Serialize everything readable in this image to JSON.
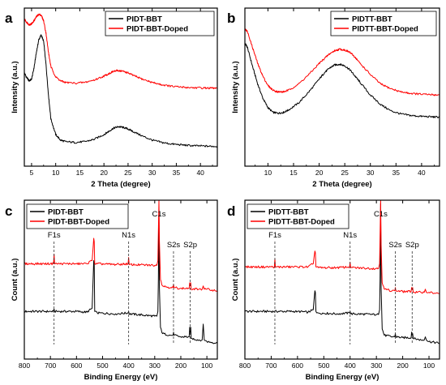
{
  "chart_data": [
    {
      "type": "line",
      "panel": "a",
      "xlabel": "2 Theta (degree)",
      "ylabel": "Intensity (a.u.)",
      "xlim": [
        3.5,
        43.5
      ],
      "ylim": [
        0,
        1
      ],
      "xticks": [
        5,
        10,
        15,
        20,
        25,
        30,
        35,
        40
      ],
      "legend": "top-right",
      "series": [
        {
          "name": "PIDT-BBT",
          "color": "#000000",
          "x": [
            3.5,
            4.0,
            4.5,
            5.0,
            5.5,
            6.0,
            6.5,
            7.0,
            7.5,
            8.0,
            8.5,
            9.0,
            10.0,
            11.0,
            12.0,
            14.0,
            16.0,
            18.0,
            20.0,
            21.0,
            22.0,
            23.0,
            24.0,
            25.0,
            26.0,
            28.0,
            30.0,
            32.0,
            34.0,
            36.0,
            38.0,
            40.0,
            42.0,
            43.5
          ],
          "y": [
            0.59,
            0.56,
            0.54,
            0.55,
            0.62,
            0.72,
            0.8,
            0.83,
            0.79,
            0.64,
            0.45,
            0.3,
            0.2,
            0.165,
            0.155,
            0.15,
            0.155,
            0.17,
            0.2,
            0.22,
            0.24,
            0.25,
            0.245,
            0.235,
            0.22,
            0.19,
            0.165,
            0.15,
            0.14,
            0.135,
            0.13,
            0.128,
            0.126,
            0.125
          ]
        },
        {
          "name": "PIDT-BBT-Doped",
          "color": "#ff0000",
          "x": [
            3.5,
            4.0,
            4.5,
            5.0,
            5.5,
            6.0,
            6.5,
            7.0,
            7.5,
            8.0,
            8.5,
            9.0,
            10.0,
            11.0,
            12.0,
            14.0,
            16.0,
            18.0,
            20.0,
            21.0,
            22.0,
            23.0,
            24.0,
            25.0,
            26.0,
            28.0,
            30.0,
            32.0,
            34.0,
            36.0,
            38.0,
            40.0,
            42.0,
            43.5
          ],
          "y": [
            0.93,
            0.91,
            0.895,
            0.9,
            0.92,
            0.945,
            0.96,
            0.955,
            0.92,
            0.84,
            0.72,
            0.63,
            0.565,
            0.54,
            0.53,
            0.525,
            0.53,
            0.545,
            0.57,
            0.585,
            0.6,
            0.605,
            0.6,
            0.59,
            0.575,
            0.55,
            0.53,
            0.515,
            0.505,
            0.5,
            0.497,
            0.495,
            0.494,
            0.493
          ]
        }
      ]
    },
    {
      "type": "line",
      "panel": "b",
      "xlabel": "2 Theta (degree)",
      "ylabel": "Intensity (a.u.)",
      "xlim": [
        5.5,
        43.5
      ],
      "ylim": [
        0,
        1
      ],
      "xticks": [
        10,
        15,
        20,
        25,
        30,
        35,
        40
      ],
      "legend": "top-right",
      "series": [
        {
          "name": "PIDTT-BBT",
          "color": "#000000",
          "x": [
            5.5,
            6.0,
            7.0,
            8.0,
            9.0,
            10.0,
            11.0,
            12.0,
            13.0,
            14.0,
            16.0,
            18.0,
            20.0,
            21.0,
            22.0,
            23.0,
            24.0,
            25.0,
            26.0,
            27.0,
            28.0,
            30.0,
            32.0,
            34.0,
            36.0,
            38.0,
            40.0,
            42.0,
            43.5
          ],
          "y": [
            0.78,
            0.75,
            0.63,
            0.52,
            0.43,
            0.37,
            0.34,
            0.335,
            0.34,
            0.355,
            0.4,
            0.47,
            0.55,
            0.59,
            0.62,
            0.64,
            0.645,
            0.635,
            0.61,
            0.57,
            0.53,
            0.45,
            0.39,
            0.35,
            0.33,
            0.32,
            0.315,
            0.312,
            0.31
          ]
        },
        {
          "name": "PIDTT-BBT-Doped",
          "color": "#ff0000",
          "x": [
            5.5,
            6.0,
            7.0,
            8.0,
            9.0,
            10.0,
            11.0,
            12.0,
            13.0,
            14.0,
            16.0,
            18.0,
            20.0,
            21.0,
            22.0,
            23.0,
            24.0,
            25.0,
            26.0,
            27.0,
            28.0,
            30.0,
            32.0,
            34.0,
            36.0,
            38.0,
            40.0,
            42.0,
            43.5
          ],
          "y": [
            0.87,
            0.85,
            0.75,
            0.65,
            0.57,
            0.51,
            0.48,
            0.47,
            0.47,
            0.48,
            0.52,
            0.58,
            0.65,
            0.68,
            0.71,
            0.73,
            0.74,
            0.735,
            0.72,
            0.69,
            0.65,
            0.58,
            0.52,
            0.49,
            0.47,
            0.46,
            0.455,
            0.452,
            0.45
          ]
        }
      ]
    },
    {
      "type": "line",
      "panel": "c",
      "xlabel": "Binding Energy (eV)",
      "ylabel": "Count (a.u.)",
      "xlim": [
        800,
        60
      ],
      "ylim": [
        0,
        1
      ],
      "xticks": [
        800,
        700,
        600,
        500,
        400,
        300,
        200,
        100
      ],
      "legend": "top-left",
      "annotations": [
        {
          "text": "F1s",
          "x": 686
        },
        {
          "text": "N1s",
          "x": 400
        },
        {
          "text": "C1s",
          "x": 284
        },
        {
          "text": "S2s",
          "x": 228
        },
        {
          "text": "S2p",
          "x": 164
        }
      ],
      "series": [
        {
          "name": "PIDT-BBT",
          "color": "#000000",
          "x": [
            800,
            700,
            688,
            686,
            684,
            600,
            560,
            540,
            534,
            532,
            530,
            520,
            450,
            402,
            400,
            398,
            300,
            292,
            288,
            286,
            284,
            282,
            278,
            270,
            240,
            230,
            228,
            226,
            200,
            168,
            166,
            164,
            162,
            160,
            130,
            118,
            114,
            110,
            100,
            80,
            60
          ],
          "y": [
            0.3,
            0.3,
            0.3,
            0.315,
            0.3,
            0.3,
            0.295,
            0.32,
            0.62,
            0.6,
            0.3,
            0.29,
            0.285,
            0.29,
            0.3,
            0.285,
            0.27,
            0.27,
            0.3,
            0.5,
            0.93,
            0.45,
            0.2,
            0.16,
            0.15,
            0.15,
            0.17,
            0.15,
            0.14,
            0.14,
            0.2,
            0.17,
            0.2,
            0.13,
            0.12,
            0.12,
            0.22,
            0.12,
            0.11,
            0.105,
            0.1
          ]
        },
        {
          "name": "PIDT-BBT-Doped",
          "color": "#ff0000",
          "x": [
            800,
            700,
            688,
            686,
            684,
            600,
            560,
            540,
            534,
            532,
            530,
            520,
            450,
            402,
            400,
            398,
            300,
            292,
            288,
            286,
            284,
            282,
            278,
            270,
            240,
            230,
            228,
            226,
            200,
            168,
            166,
            164,
            162,
            160,
            130,
            118,
            114,
            110,
            100,
            80,
            60
          ],
          "y": [
            0.6,
            0.6,
            0.6,
            0.66,
            0.6,
            0.6,
            0.6,
            0.62,
            0.76,
            0.74,
            0.6,
            0.6,
            0.595,
            0.6,
            0.64,
            0.595,
            0.59,
            0.59,
            0.62,
            0.8,
            1.0,
            0.74,
            0.5,
            0.46,
            0.45,
            0.45,
            0.47,
            0.45,
            0.445,
            0.445,
            0.48,
            0.46,
            0.48,
            0.44,
            0.44,
            0.44,
            0.46,
            0.44,
            0.44,
            0.435,
            0.43
          ]
        }
      ]
    },
    {
      "type": "line",
      "panel": "d",
      "xlabel": "Binding Energy (eV)",
      "ylabel": "Count (a.u.)",
      "xlim": [
        800,
        60
      ],
      "ylim": [
        0,
        1
      ],
      "xticks": [
        800,
        700,
        600,
        500,
        400,
        300,
        200,
        100
      ],
      "legend": "top-left",
      "annotations": [
        {
          "text": "F1s",
          "x": 686
        },
        {
          "text": "N1s",
          "x": 400
        },
        {
          "text": "C1s",
          "x": 284
        },
        {
          "text": "S2s",
          "x": 228
        },
        {
          "text": "S2p",
          "x": 164
        }
      ],
      "series": [
        {
          "name": "PIDTT-BBT",
          "color": "#000000",
          "x": [
            800,
            700,
            600,
            560,
            540,
            534,
            532,
            530,
            520,
            450,
            402,
            400,
            398,
            300,
            292,
            288,
            286,
            284,
            282,
            278,
            270,
            240,
            230,
            228,
            226,
            200,
            168,
            166,
            164,
            162,
            160,
            130,
            118,
            114,
            110,
            100,
            80,
            60
          ],
          "y": [
            0.3,
            0.3,
            0.3,
            0.295,
            0.31,
            0.43,
            0.42,
            0.3,
            0.29,
            0.285,
            0.29,
            0.3,
            0.285,
            0.28,
            0.28,
            0.31,
            0.5,
            0.98,
            0.45,
            0.19,
            0.15,
            0.14,
            0.14,
            0.16,
            0.14,
            0.135,
            0.135,
            0.17,
            0.15,
            0.16,
            0.13,
            0.12,
            0.12,
            0.14,
            0.12,
            0.11,
            0.105,
            0.1
          ]
        },
        {
          "name": "PIDTT-BBT-Doped",
          "color": "#ff0000",
          "x": [
            800,
            700,
            688,
            686,
            684,
            600,
            560,
            540,
            534,
            532,
            530,
            520,
            450,
            402,
            400,
            398,
            300,
            292,
            288,
            286,
            284,
            282,
            278,
            270,
            240,
            230,
            228,
            226,
            200,
            168,
            166,
            164,
            162,
            160,
            130,
            118,
            114,
            110,
            100,
            80,
            60
          ],
          "y": [
            0.58,
            0.58,
            0.58,
            0.63,
            0.58,
            0.58,
            0.58,
            0.6,
            0.68,
            0.67,
            0.58,
            0.575,
            0.575,
            0.58,
            0.61,
            0.575,
            0.57,
            0.57,
            0.6,
            0.78,
            1.0,
            0.72,
            0.48,
            0.44,
            0.43,
            0.43,
            0.45,
            0.43,
            0.425,
            0.425,
            0.45,
            0.44,
            0.45,
            0.42,
            0.42,
            0.42,
            0.44,
            0.42,
            0.42,
            0.415,
            0.41
          ]
        }
      ]
    }
  ]
}
